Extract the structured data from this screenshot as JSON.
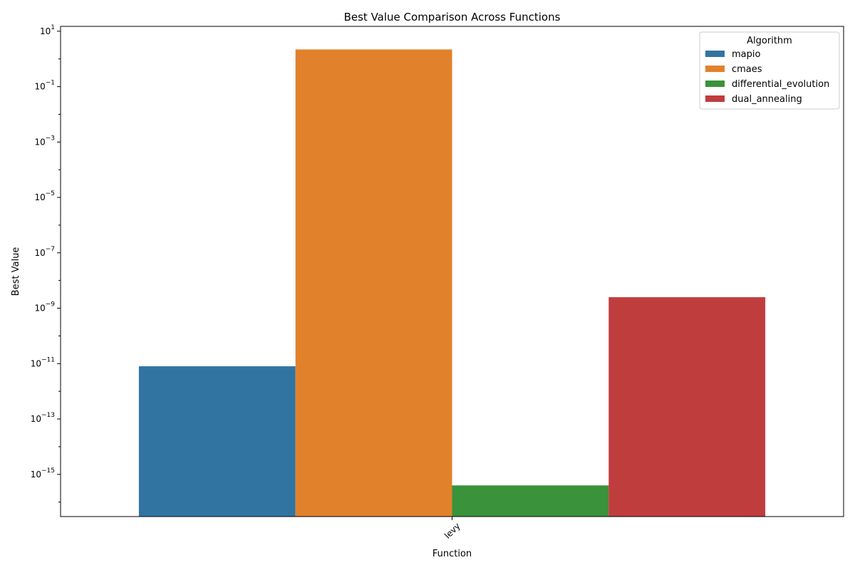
{
  "chart_data": {
    "type": "bar",
    "title": "Best Value Comparison Across Functions",
    "xlabel": "Function",
    "ylabel": "Best Value",
    "yscale": "log",
    "ylim": [
      3e-17,
      15
    ],
    "categories": [
      "levy"
    ],
    "legend": {
      "title": "Algorithm",
      "placement": "top-right"
    },
    "series": [
      {
        "name": "mapio",
        "color": "#3274a1",
        "values": [
          8e-12
        ]
      },
      {
        "name": "cmaes",
        "color": "#e1812c",
        "values": [
          2.2
        ]
      },
      {
        "name": "differential_evolution",
        "color": "#3a923a",
        "values": [
          4e-16
        ]
      },
      {
        "name": "dual_annealing",
        "color": "#c03d3e",
        "values": [
          2.5e-09
        ]
      }
    ],
    "y_ticks": [
      {
        "base": "10",
        "exp": "1"
      },
      {
        "base": "10",
        "exp": "−1"
      },
      {
        "base": "10",
        "exp": "−3"
      },
      {
        "base": "10",
        "exp": "−5"
      },
      {
        "base": "10",
        "exp": "−7"
      },
      {
        "base": "10",
        "exp": "−9"
      },
      {
        "base": "10",
        "exp": "−11"
      },
      {
        "base": "10",
        "exp": "−13"
      },
      {
        "base": "10",
        "exp": "−15"
      }
    ]
  }
}
